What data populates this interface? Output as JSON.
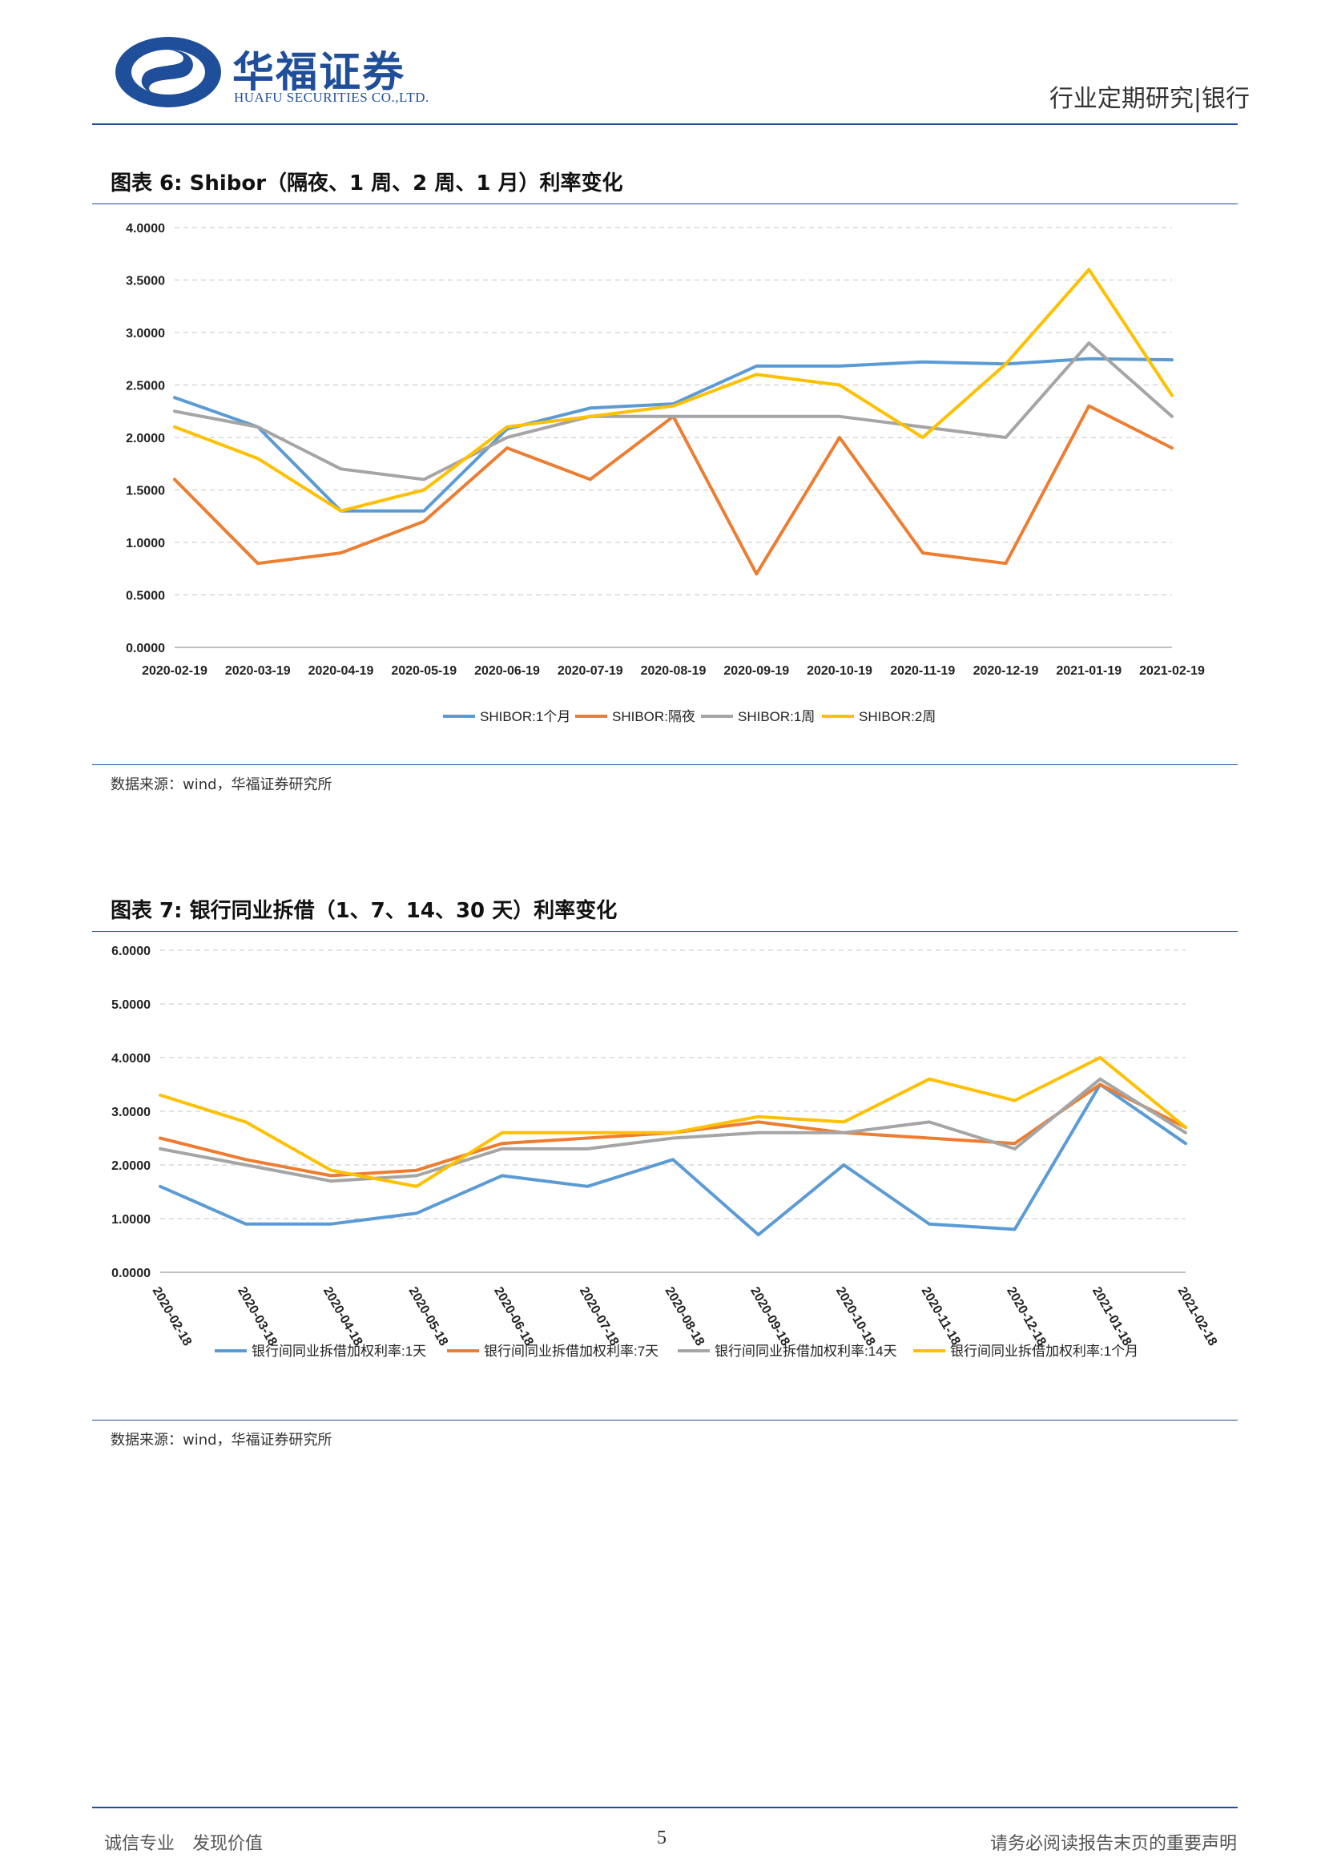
{
  "header": {
    "company_cn": "华福证券",
    "company_en": "HUAFU SECURITIES CO.,LTD.",
    "report_type": "行业定期研究|银行"
  },
  "colors": {
    "brand": "#1f4e9a",
    "blue": "#5b9bd5",
    "orange": "#ed7d31",
    "gray": "#a5a5a5",
    "yellow": "#ffc000"
  },
  "figure6": {
    "title": "图表 6:  Shibor（隔夜、1 周、2 周、1 月）利率变化",
    "source": "数据来源：wind，华福证券研究所"
  },
  "figure7": {
    "title": "图表 7:  银行同业拆借（1、7、14、30 天）利率变化",
    "source": "数据来源：wind，华福证券研究所"
  },
  "chart_data": [
    {
      "type": "line",
      "title": "",
      "xlabel": "",
      "ylabel": "",
      "ylim": [
        0,
        4
      ],
      "y_ticks": [
        "0.0000",
        "0.5000",
        "1.0000",
        "1.5000",
        "2.0000",
        "2.5000",
        "3.0000",
        "3.5000",
        "4.0000"
      ],
      "x_ticks": [
        "2020-02-19",
        "2020-03-19",
        "2020-04-19",
        "2020-05-19",
        "2020-06-19",
        "2020-07-19",
        "2020-08-19",
        "2020-09-19",
        "2020-10-19",
        "2020-11-19",
        "2020-12-19",
        "2021-01-19",
        "2021-02-19"
      ],
      "x_label_rotation": 0,
      "grid": "dashed-horizontal",
      "legend": "bottom",
      "series": [
        {
          "name": "SHIBOR:1个月",
          "color": "#5b9bd5",
          "values": [
            2.38,
            2.1,
            1.3,
            1.3,
            2.08,
            2.28,
            2.32,
            2.68,
            2.68,
            2.72,
            2.7,
            2.75,
            2.74
          ]
        },
        {
          "name": "SHIBOR:隔夜",
          "color": "#ed7d31",
          "values": [
            1.6,
            0.8,
            0.9,
            1.2,
            1.9,
            1.6,
            2.2,
            0.7,
            2.0,
            0.9,
            0.8,
            2.3,
            1.9
          ]
        },
        {
          "name": "SHIBOR:1周",
          "color": "#a5a5a5",
          "values": [
            2.25,
            2.1,
            1.7,
            1.6,
            2.0,
            2.2,
            2.2,
            2.2,
            2.2,
            2.1,
            2.0,
            2.9,
            2.2
          ]
        },
        {
          "name": "SHIBOR:2周",
          "color": "#ffc000",
          "values": [
            2.1,
            1.8,
            1.3,
            1.5,
            2.1,
            2.2,
            2.3,
            2.6,
            2.5,
            2.0,
            2.7,
            3.6,
            2.4
          ]
        }
      ]
    },
    {
      "type": "line",
      "title": "",
      "xlabel": "",
      "ylabel": "",
      "ylim": [
        0,
        6
      ],
      "y_ticks": [
        "0.0000",
        "1.0000",
        "2.0000",
        "3.0000",
        "4.0000",
        "5.0000",
        "6.0000"
      ],
      "x_ticks": [
        "2020-02-18",
        "2020-03-18",
        "2020-04-18",
        "2020-05-18",
        "2020-06-18",
        "2020-07-18",
        "2020-08-18",
        "2020-09-18",
        "2020-10-18",
        "2020-11-18",
        "2020-12-18",
        "2021-01-18",
        "2021-02-18"
      ],
      "x_label_rotation": 60,
      "grid": "dashed-horizontal",
      "legend": "bottom",
      "series": [
        {
          "name": "银行间同业拆借加权利率:1天",
          "color": "#5b9bd5",
          "values": [
            1.6,
            0.9,
            0.9,
            1.1,
            1.8,
            1.6,
            2.1,
            0.7,
            2.0,
            0.9,
            0.8,
            3.5,
            2.4
          ]
        },
        {
          "name": "银行间同业拆借加权利率:7天",
          "color": "#ed7d31",
          "values": [
            2.5,
            2.1,
            1.8,
            1.9,
            2.4,
            2.5,
            2.6,
            2.8,
            2.6,
            2.5,
            2.4,
            3.5,
            2.7
          ]
        },
        {
          "name": "银行间同业拆借加权利率:14天",
          "color": "#a5a5a5",
          "values": [
            2.3,
            2.0,
            1.7,
            1.8,
            2.3,
            2.3,
            2.5,
            2.6,
            2.6,
            2.8,
            2.3,
            3.6,
            2.6
          ]
        },
        {
          "name": "银行间同业拆借加权利率:1个月",
          "color": "#ffc000",
          "values": [
            3.3,
            2.8,
            1.9,
            1.6,
            2.6,
            2.6,
            2.6,
            2.9,
            2.8,
            3.6,
            3.2,
            4.0,
            2.7
          ]
        }
      ]
    }
  ],
  "footer": {
    "left": "诚信专业　发现价值",
    "page": "5",
    "right": "请务必阅读报告末页的重要声明"
  }
}
